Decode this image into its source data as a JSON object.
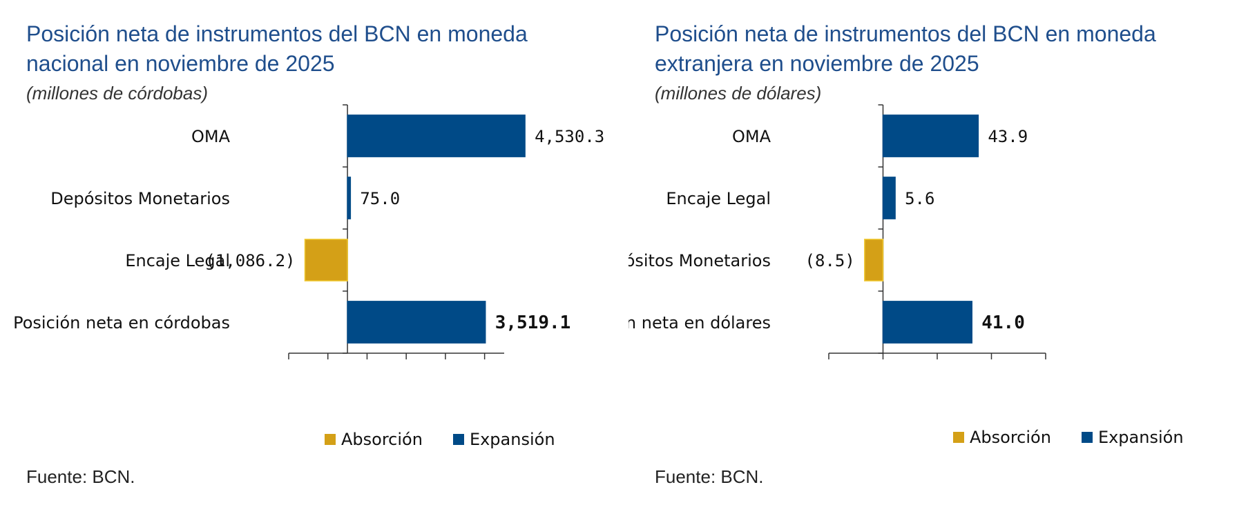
{
  "colors": {
    "title": "#1f4e8c",
    "absorcion": "#d4a017",
    "absorcion_edge": "#f2cb35",
    "expansion": "#004a87",
    "axis": "#333333"
  },
  "legend": {
    "absorcion": "Absorción",
    "expansion": "Expansión"
  },
  "source": "Fuente: BCN.",
  "chart_data": [
    {
      "type": "bar",
      "orientation": "horizontal",
      "title": "Posición neta de instrumentos del BCN en moneda nacional en noviembre de 2025",
      "title_lines": [
        "Posición neta de instrumentos del BCN en moneda",
        "nacional en noviembre de 2025"
      ],
      "subtitle": "(millones de córdobas)",
      "categories": [
        "OMA",
        "Depósitos Monetarios",
        "Encaje Legal",
        "Posición neta en córdobas"
      ],
      "values": [
        4530.3,
        75.0,
        -1086.2,
        3519.1
      ],
      "value_labels": [
        "4,530.3",
        "75.0",
        "(1,086.2)",
        "3,519.1"
      ],
      "bold_last": true,
      "xlim": [
        -1500,
        4000
      ],
      "xtick_step": 1000,
      "legend": [
        "Absorción",
        "Expansión"
      ]
    },
    {
      "type": "bar",
      "orientation": "horizontal",
      "title": "Posición neta de instrumentos del BCN en moneda extranjera en noviembre de 2025",
      "title_lines": [
        "Posición neta de instrumentos del BCN en moneda",
        "extranjera en noviembre de 2025"
      ],
      "subtitle": "(millones de dólares)",
      "categories": [
        "OMA",
        "Encaje Legal",
        "Depósitos Monetarios",
        "Posición neta en dólares"
      ],
      "values": [
        43.9,
        5.6,
        -8.5,
        41.0
      ],
      "value_labels": [
        "43.9",
        "5.6",
        "(8.5)",
        "41.0"
      ],
      "bold_last": true,
      "xlim": [
        -25,
        75
      ],
      "xtick_step": 25,
      "legend": [
        "Absorción",
        "Expansión"
      ]
    }
  ]
}
